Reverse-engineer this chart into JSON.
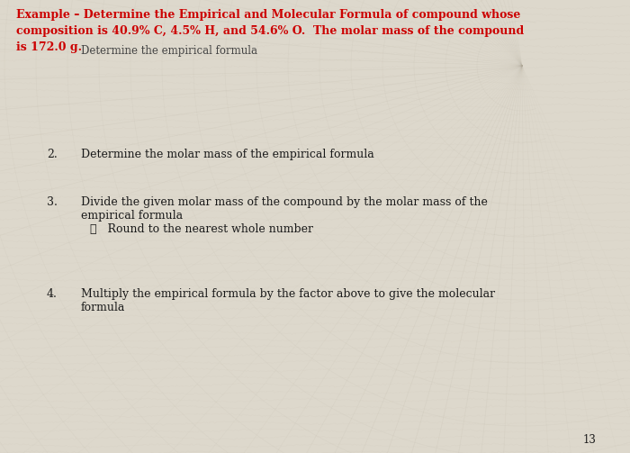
{
  "title_line1": "Example – Determine the Empirical and Molecular Formula of compound whose",
  "title_line2": "composition is 40.9% C, 4.5% H, and 54.6% O.  The molar mass of the compound",
  "title_line3": "is 172.0 g.",
  "subtitle": "Determine the empirical formula",
  "step2_label": "2.",
  "step2_text": "Determine the molar mass of the empirical formula",
  "step3_label": "3.",
  "step3_text_a": "Divide the given molar mass of the compound by the molar mass of the",
  "step3_text_b": "empirical formula",
  "step3_sub": "✓   Round to the nearest whole number",
  "step4_label": "4.",
  "step4_text_a": "Multiply the empirical formula by the factor above to give the molecular",
  "step4_text_b": "formula",
  "page_num": "13",
  "bg_color": "#ddd8cc",
  "title_color": "#cc0000",
  "body_color": "#1a1a1a",
  "subtitle_color": "#444444",
  "title_fontsize": 9.0,
  "body_fontsize": 9.0,
  "subtitle_fontsize": 8.5
}
